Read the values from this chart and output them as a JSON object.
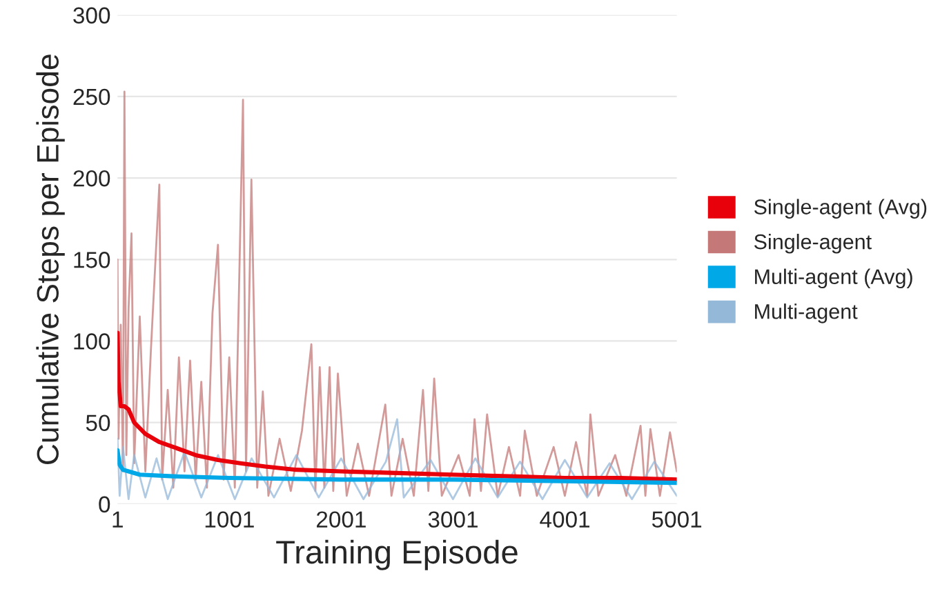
{
  "chart_data": {
    "type": "line",
    "xlabel": "Training Episode",
    "ylabel": "Cumulative Steps per Episode",
    "xlim": [
      1,
      5001
    ],
    "xticks": [
      1,
      1001,
      2001,
      3001,
      4001,
      5001
    ],
    "ylim": [
      0,
      300
    ],
    "yticks": [
      0,
      50,
      100,
      150,
      200,
      250,
      300
    ],
    "grid": "y",
    "legend": "right",
    "line_style": "solid",
    "series": [
      {
        "name": "Single-agent (Avg)",
        "color": "#e8000b",
        "x": [
          1,
          10,
          30,
          63,
          100,
          150,
          250,
          375,
          500,
          700,
          900,
          1100,
          1323,
          1600,
          2000,
          2500,
          2993,
          3500,
          4000,
          4500,
          5001
        ],
        "values": [
          105,
          75,
          60,
          60,
          58,
          50,
          43,
          38,
          35,
          30,
          27,
          25,
          23,
          21,
          20,
          19,
          18,
          17,
          16,
          16,
          15
        ]
      },
      {
        "name": "Single-agent",
        "color": "#c47878",
        "x": [
          1,
          10,
          30,
          50,
          63,
          80,
          100,
          126,
          150,
          200,
          250,
          300,
          375,
          400,
          450,
          500,
          550,
          600,
          650,
          700,
          750,
          800,
          850,
          899,
          950,
          1000,
          1050,
          1123,
          1150,
          1198,
          1250,
          1300,
          1350,
          1450,
          1550,
          1650,
          1734,
          1770,
          1809,
          1850,
          1897,
          1930,
          1971,
          2050,
          2150,
          2250,
          2395,
          2450,
          2550,
          2650,
          2732,
          2780,
          2832,
          2900,
          3050,
          3150,
          3193,
          3250,
          3305,
          3400,
          3500,
          3600,
          3642,
          3750,
          3900,
          4000,
          4100,
          4200,
          4228,
          4300,
          4450,
          4550,
          4677,
          4720,
          4765,
          4850,
          4940,
          5001
        ],
        "values": [
          150,
          40,
          110,
          20,
          253,
          30,
          120,
          166,
          25,
          115,
          20,
          95,
          196,
          15,
          70,
          10,
          90,
          20,
          88,
          15,
          75,
          10,
          117,
          159,
          15,
          90,
          10,
          248,
          20,
          199,
          10,
          69,
          5,
          40,
          8,
          45,
          98,
          8,
          84,
          10,
          84,
          8,
          80,
          5,
          37,
          5,
          61,
          5,
          40,
          5,
          70,
          8,
          77,
          5,
          30,
          5,
          52,
          8,
          55,
          5,
          35,
          5,
          45,
          5,
          35,
          5,
          38,
          5,
          55,
          5,
          30,
          5,
          48,
          5,
          46,
          5,
          44,
          20
        ]
      },
      {
        "name": "Multi-agent (Avg)",
        "color": "#00a8e8",
        "x": [
          1,
          20,
          50,
          100,
          200,
          500,
          1000,
          2000,
          3000,
          4000,
          5001
        ],
        "values": [
          33,
          24,
          21,
          20,
          18,
          17,
          16,
          15,
          15,
          14,
          13
        ]
      },
      {
        "name": "Multi-agent",
        "color": "#94b8d8",
        "x": [
          1,
          20,
          50,
          100,
          150,
          250,
          350,
          450,
          600,
          750,
          900,
          1050,
          1200,
          1400,
          1600,
          1800,
          2000,
          2200,
          2400,
          2501,
          2560,
          2800,
          3000,
          3200,
          3400,
          3600,
          3800,
          4000,
          4200,
          4400,
          4600,
          4800,
          5001
        ],
        "values": [
          40,
          5,
          35,
          3,
          30,
          4,
          28,
          3,
          32,
          4,
          30,
          3,
          28,
          4,
          30,
          4,
          28,
          3,
          26,
          52,
          4,
          27,
          3,
          28,
          4,
          26,
          3,
          27,
          4,
          25,
          3,
          26,
          5
        ]
      }
    ]
  }
}
